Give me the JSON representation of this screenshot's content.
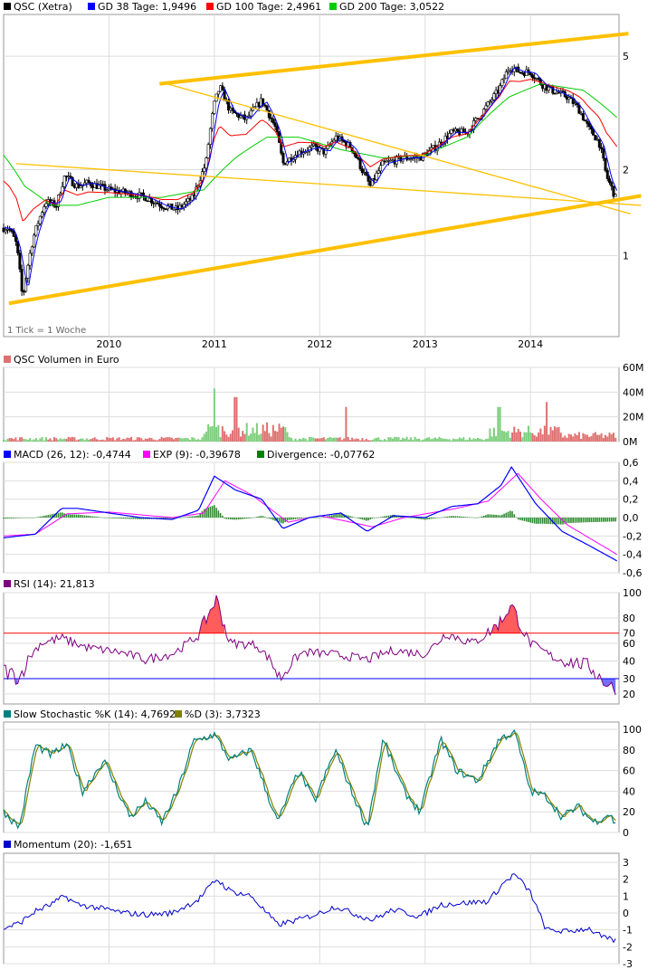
{
  "chart_data": [
    {
      "panel": "price",
      "type": "candlestick",
      "title": "QSC (Xetra)",
      "note": "1 Tick = 1 Woche",
      "x_ticks": [
        "2010",
        "2011",
        "2012",
        "2013",
        "2014"
      ],
      "y_scale": "log",
      "y_ticks": [
        "1",
        "2",
        "5"
      ],
      "legend": [
        {
          "label": "QSC (Xetra)",
          "color": "#000000"
        },
        {
          "label": "GD 38 Tage: 1,9496",
          "color": "#0000ff"
        },
        {
          "label": "GD 100 Tage: 2,4961",
          "color": "#ff0000"
        },
        {
          "label": "GD 200 Tage: 3,0522",
          "color": "#00cc00"
        }
      ],
      "close_series": [
        {
          "t": 2009.05,
          "v": 1.25
        },
        {
          "t": 2009.12,
          "v": 1.1
        },
        {
          "t": 2009.18,
          "v": 0.7
        },
        {
          "t": 2009.28,
          "v": 1.15
        },
        {
          "t": 2009.4,
          "v": 1.55
        },
        {
          "t": 2009.5,
          "v": 1.5
        },
        {
          "t": 2009.58,
          "v": 1.9
        },
        {
          "t": 2009.7,
          "v": 1.75
        },
        {
          "t": 2009.8,
          "v": 1.8
        },
        {
          "t": 2010.0,
          "v": 1.7
        },
        {
          "t": 2010.2,
          "v": 1.65
        },
        {
          "t": 2010.35,
          "v": 1.6
        },
        {
          "t": 2010.5,
          "v": 1.5
        },
        {
          "t": 2010.65,
          "v": 1.45
        },
        {
          "t": 2010.8,
          "v": 1.6
        },
        {
          "t": 2010.92,
          "v": 2.1
        },
        {
          "t": 2011.0,
          "v": 3.4
        },
        {
          "t": 2011.05,
          "v": 3.9
        },
        {
          "t": 2011.15,
          "v": 3.2
        },
        {
          "t": 2011.3,
          "v": 3.0
        },
        {
          "t": 2011.45,
          "v": 3.5
        },
        {
          "t": 2011.58,
          "v": 2.8
        },
        {
          "t": 2011.65,
          "v": 2.1
        },
        {
          "t": 2011.8,
          "v": 2.3
        },
        {
          "t": 2011.95,
          "v": 2.4
        },
        {
          "t": 2012.05,
          "v": 2.3
        },
        {
          "t": 2012.15,
          "v": 2.6
        },
        {
          "t": 2012.3,
          "v": 2.4
        },
        {
          "t": 2012.4,
          "v": 2.0
        },
        {
          "t": 2012.48,
          "v": 1.75
        },
        {
          "t": 2012.6,
          "v": 2.1
        },
        {
          "t": 2012.8,
          "v": 2.2
        },
        {
          "t": 2012.95,
          "v": 2.2
        },
        {
          "t": 2013.1,
          "v": 2.4
        },
        {
          "t": 2013.25,
          "v": 2.7
        },
        {
          "t": 2013.4,
          "v": 2.7
        },
        {
          "t": 2013.55,
          "v": 3.2
        },
        {
          "t": 2013.7,
          "v": 3.8
        },
        {
          "t": 2013.8,
          "v": 4.6
        },
        {
          "t": 2013.9,
          "v": 4.4
        },
        {
          "t": 2014.0,
          "v": 4.4
        },
        {
          "t": 2014.1,
          "v": 4.0
        },
        {
          "t": 2014.2,
          "v": 3.8
        },
        {
          "t": 2014.35,
          "v": 3.6
        },
        {
          "t": 2014.45,
          "v": 3.3
        },
        {
          "t": 2014.55,
          "v": 2.8
        },
        {
          "t": 2014.65,
          "v": 2.5
        },
        {
          "t": 2014.72,
          "v": 1.9
        },
        {
          "t": 2014.82,
          "v": 1.55
        }
      ],
      "sma_200_series": [
        {
          "t": 2009.0,
          "v": 2.25
        },
        {
          "t": 2009.2,
          "v": 1.75
        },
        {
          "t": 2009.45,
          "v": 1.5
        },
        {
          "t": 2009.7,
          "v": 1.5
        },
        {
          "t": 2010.0,
          "v": 1.6
        },
        {
          "t": 2010.5,
          "v": 1.6
        },
        {
          "t": 2010.9,
          "v": 1.7
        },
        {
          "t": 2011.2,
          "v": 2.2
        },
        {
          "t": 2011.5,
          "v": 2.6
        },
        {
          "t": 2011.8,
          "v": 2.6
        },
        {
          "t": 2012.2,
          "v": 2.35
        },
        {
          "t": 2012.6,
          "v": 2.2
        },
        {
          "t": 2013.0,
          "v": 2.25
        },
        {
          "t": 2013.4,
          "v": 2.6
        },
        {
          "t": 2013.8,
          "v": 3.6
        },
        {
          "t": 2014.1,
          "v": 4.0
        },
        {
          "t": 2014.5,
          "v": 3.8
        },
        {
          "t": 2014.82,
          "v": 3.05
        }
      ],
      "trendlines": [
        {
          "from": {
            "t": 2009.05,
            "v": 0.68
          },
          "to": {
            "t": 2015.05,
            "v": 1.62
          }
        },
        {
          "from": {
            "t": 2010.48,
            "v": 4.0
          },
          "to": {
            "t": 2014.93,
            "v": 6.0
          }
        },
        {
          "from": {
            "t": 2009.12,
            "v": 2.1
          },
          "to": {
            "t": 2015.05,
            "v": 1.5
          }
        },
        {
          "from": {
            "t": 2010.55,
            "v": 4.0
          },
          "to": {
            "t": 2014.95,
            "v": 1.4
          }
        }
      ]
    },
    {
      "panel": "volume",
      "type": "bar",
      "title": "QSC Volumen in Euro",
      "y_ticks": [
        "0M",
        "20M",
        "40M",
        "60M"
      ],
      "y_range": [
        0,
        60
      ],
      "unit": "Mio. Euro",
      "peaks": [
        {
          "t": 2011.0,
          "v": 43
        },
        {
          "t": 2011.2,
          "v": 36
        },
        {
          "t": 2012.25,
          "v": 28
        },
        {
          "t": 2013.7,
          "v": 28
        },
        {
          "t": 2014.15,
          "v": 32
        }
      ]
    },
    {
      "panel": "macd",
      "type": "line",
      "title": "MACD (26, 12)",
      "legend": [
        {
          "label": "MACD (26, 12): -0,4744",
          "color": "#0000ff"
        },
        {
          "label": "EXP (9): -0,39678",
          "color": "#ff00ff"
        },
        {
          "label": "Divergence: -0,07762",
          "color": "#008000"
        }
      ],
      "y_ticks": [
        "0,6",
        "0,4",
        "0,2",
        "0,0",
        "-0,2",
        "-0,4",
        "-0,6"
      ],
      "y_range": [
        -0.6,
        0.6
      ],
      "macd_series": [
        {
          "t": 2009.0,
          "v": -0.22
        },
        {
          "t": 2009.3,
          "v": -0.18
        },
        {
          "t": 2009.55,
          "v": 0.1
        },
        {
          "t": 2009.7,
          "v": 0.1
        },
        {
          "t": 2010.0,
          "v": 0.05
        },
        {
          "t": 2010.3,
          "v": 0.0
        },
        {
          "t": 2010.6,
          "v": -0.02
        },
        {
          "t": 2010.85,
          "v": 0.08
        },
        {
          "t": 2011.0,
          "v": 0.45
        },
        {
          "t": 2011.2,
          "v": 0.3
        },
        {
          "t": 2011.45,
          "v": 0.2
        },
        {
          "t": 2011.65,
          "v": -0.12
        },
        {
          "t": 2011.9,
          "v": 0.0
        },
        {
          "t": 2012.2,
          "v": 0.05
        },
        {
          "t": 2012.45,
          "v": -0.15
        },
        {
          "t": 2012.7,
          "v": 0.02
        },
        {
          "t": 2013.0,
          "v": 0.0
        },
        {
          "t": 2013.25,
          "v": 0.12
        },
        {
          "t": 2013.5,
          "v": 0.15
        },
        {
          "t": 2013.72,
          "v": 0.35
        },
        {
          "t": 2013.82,
          "v": 0.55
        },
        {
          "t": 2014.05,
          "v": 0.15
        },
        {
          "t": 2014.3,
          "v": -0.15
        },
        {
          "t": 2014.55,
          "v": -0.3
        },
        {
          "t": 2014.82,
          "v": -0.47
        }
      ],
      "exp_series": [
        {
          "t": 2009.0,
          "v": -0.2
        },
        {
          "t": 2009.3,
          "v": -0.18
        },
        {
          "t": 2009.6,
          "v": 0.04
        },
        {
          "t": 2010.0,
          "v": 0.06
        },
        {
          "t": 2010.6,
          "v": 0.0
        },
        {
          "t": 2010.9,
          "v": 0.05
        },
        {
          "t": 2011.1,
          "v": 0.4
        },
        {
          "t": 2011.35,
          "v": 0.25
        },
        {
          "t": 2011.7,
          "v": -0.05
        },
        {
          "t": 2012.0,
          "v": 0.02
        },
        {
          "t": 2012.5,
          "v": -0.1
        },
        {
          "t": 2012.8,
          "v": 0.0
        },
        {
          "t": 2013.3,
          "v": 0.1
        },
        {
          "t": 2013.6,
          "v": 0.18
        },
        {
          "t": 2013.88,
          "v": 0.48
        },
        {
          "t": 2014.1,
          "v": 0.2
        },
        {
          "t": 2014.35,
          "v": -0.08
        },
        {
          "t": 2014.6,
          "v": -0.25
        },
        {
          "t": 2014.82,
          "v": -0.4
        }
      ]
    },
    {
      "panel": "rsi",
      "type": "line",
      "title": "RSI (14): 21,813",
      "y_ticks": [
        "20",
        "30",
        "40",
        "60",
        "70",
        "80",
        "100"
      ],
      "y_range": [
        0,
        100
      ],
      "levels": [
        70,
        30
      ],
      "series": [
        {
          "t": 2009.0,
          "v": 35
        },
        {
          "t": 2009.15,
          "v": 30
        },
        {
          "t": 2009.35,
          "v": 60
        },
        {
          "t": 2009.55,
          "v": 65
        },
        {
          "t": 2009.8,
          "v": 55
        },
        {
          "t": 2010.1,
          "v": 50
        },
        {
          "t": 2010.35,
          "v": 42
        },
        {
          "t": 2010.6,
          "v": 48
        },
        {
          "t": 2010.85,
          "v": 68
        },
        {
          "t": 2011.02,
          "v": 95
        },
        {
          "t": 2011.15,
          "v": 60
        },
        {
          "t": 2011.4,
          "v": 58
        },
        {
          "t": 2011.62,
          "v": 30
        },
        {
          "t": 2011.85,
          "v": 50
        },
        {
          "t": 2012.1,
          "v": 48
        },
        {
          "t": 2012.45,
          "v": 42
        },
        {
          "t": 2012.7,
          "v": 52
        },
        {
          "t": 2013.0,
          "v": 48
        },
        {
          "t": 2013.2,
          "v": 70
        },
        {
          "t": 2013.45,
          "v": 60
        },
        {
          "t": 2013.72,
          "v": 78
        },
        {
          "t": 2013.82,
          "v": 90
        },
        {
          "t": 2014.0,
          "v": 60
        },
        {
          "t": 2014.25,
          "v": 42
        },
        {
          "t": 2014.55,
          "v": 38
        },
        {
          "t": 2014.7,
          "v": 28
        },
        {
          "t": 2014.82,
          "v": 22
        }
      ]
    },
    {
      "panel": "stochastic",
      "type": "line",
      "title": "Slow Stochastic",
      "legend": [
        {
          "label": "Slow Stochastic %K (14): 4,7692",
          "color": "#008080"
        },
        {
          "label": "%D (3): 3,7323",
          "color": "#808000"
        }
      ],
      "y_ticks": [
        "0",
        "20",
        "40",
        "60",
        "80",
        "100"
      ],
      "y_range": [
        0,
        100
      ],
      "k_series": [
        {
          "t": 2009.0,
          "v": 20
        },
        {
          "t": 2009.15,
          "v": 5
        },
        {
          "t": 2009.3,
          "v": 85
        },
        {
          "t": 2009.45,
          "v": 75
        },
        {
          "t": 2009.6,
          "v": 85
        },
        {
          "t": 2009.75,
          "v": 40
        },
        {
          "t": 2009.95,
          "v": 70
        },
        {
          "t": 2010.2,
          "v": 15
        },
        {
          "t": 2010.35,
          "v": 30
        },
        {
          "t": 2010.5,
          "v": 10
        },
        {
          "t": 2010.65,
          "v": 40
        },
        {
          "t": 2010.8,
          "v": 88
        },
        {
          "t": 2011.0,
          "v": 95
        },
        {
          "t": 2011.15,
          "v": 70
        },
        {
          "t": 2011.35,
          "v": 80
        },
        {
          "t": 2011.6,
          "v": 10
        },
        {
          "t": 2011.8,
          "v": 60
        },
        {
          "t": 2011.95,
          "v": 30
        },
        {
          "t": 2012.15,
          "v": 80
        },
        {
          "t": 2012.3,
          "v": 40
        },
        {
          "t": 2012.45,
          "v": 5
        },
        {
          "t": 2012.6,
          "v": 90
        },
        {
          "t": 2012.8,
          "v": 40
        },
        {
          "t": 2012.95,
          "v": 20
        },
        {
          "t": 2013.15,
          "v": 90
        },
        {
          "t": 2013.3,
          "v": 60
        },
        {
          "t": 2013.5,
          "v": 50
        },
        {
          "t": 2013.7,
          "v": 90
        },
        {
          "t": 2013.85,
          "v": 98
        },
        {
          "t": 2014.0,
          "v": 40
        },
        {
          "t": 2014.15,
          "v": 35
        },
        {
          "t": 2014.3,
          "v": 15
        },
        {
          "t": 2014.45,
          "v": 25
        },
        {
          "t": 2014.6,
          "v": 10
        },
        {
          "t": 2014.75,
          "v": 18
        },
        {
          "t": 2014.82,
          "v": 5
        }
      ]
    },
    {
      "panel": "momentum",
      "type": "line",
      "title": "Momentum (20): -1,651",
      "y_ticks": [
        "-3",
        "-2",
        "-1",
        "0",
        "1",
        "2",
        "3"
      ],
      "y_range": [
        -3,
        3
      ],
      "series": [
        {
          "t": 2009.0,
          "v": -0.9
        },
        {
          "t": 2009.15,
          "v": -0.6
        },
        {
          "t": 2009.3,
          "v": 0.1
        },
        {
          "t": 2009.45,
          "v": 0.5
        },
        {
          "t": 2009.58,
          "v": 1.0
        },
        {
          "t": 2009.7,
          "v": 0.5
        },
        {
          "t": 2009.9,
          "v": 0.3
        },
        {
          "t": 2010.15,
          "v": 0.0
        },
        {
          "t": 2010.35,
          "v": -0.1
        },
        {
          "t": 2010.6,
          "v": 0.0
        },
        {
          "t": 2010.85,
          "v": 0.8
        },
        {
          "t": 2011.02,
          "v": 2.0
        },
        {
          "t": 2011.15,
          "v": 1.3
        },
        {
          "t": 2011.35,
          "v": 1.0
        },
        {
          "t": 2011.6,
          "v": -0.7
        },
        {
          "t": 2011.8,
          "v": -0.4
        },
        {
          "t": 2012.0,
          "v": 0.0
        },
        {
          "t": 2012.15,
          "v": 0.4
        },
        {
          "t": 2012.35,
          "v": -0.1
        },
        {
          "t": 2012.5,
          "v": -0.4
        },
        {
          "t": 2012.7,
          "v": 0.2
        },
        {
          "t": 2012.95,
          "v": -0.2
        },
        {
          "t": 2013.15,
          "v": 0.5
        },
        {
          "t": 2013.4,
          "v": 0.6
        },
        {
          "t": 2013.6,
          "v": 0.7
        },
        {
          "t": 2013.75,
          "v": 1.8
        },
        {
          "t": 2013.85,
          "v": 2.3
        },
        {
          "t": 2014.0,
          "v": 1.2
        },
        {
          "t": 2014.15,
          "v": -1.0
        },
        {
          "t": 2014.35,
          "v": -1.1
        },
        {
          "t": 2014.55,
          "v": -0.9
        },
        {
          "t": 2014.7,
          "v": -1.5
        },
        {
          "t": 2014.82,
          "v": -1.65
        }
      ]
    }
  ],
  "colors": {
    "grid": "#dddddd",
    "border": "#999999",
    "trendline": "#ffc000",
    "price_candle": "#000000",
    "sma38": "#0000ff",
    "sma100": "#ff0000",
    "sma200": "#00cc00",
    "rsi_line": "#800080",
    "rsi_overbought_fill": "#ff5c5c",
    "rsi_oversold_fill": "#7070ff",
    "rsi_70_line": "#ff0000",
    "rsi_30_line": "#0000ff",
    "momentum_line": "#0000cc",
    "volume_up": "#7ccf7c",
    "volume_down": "#e07070"
  }
}
